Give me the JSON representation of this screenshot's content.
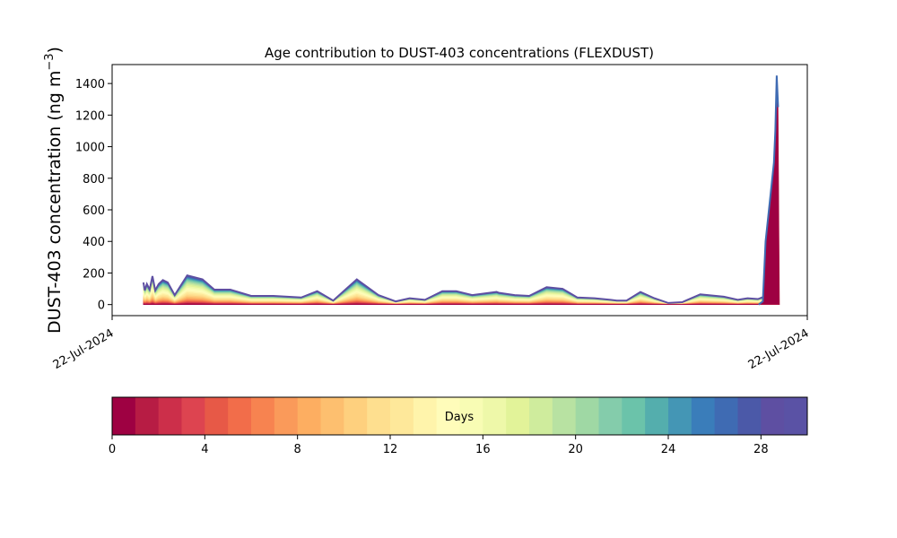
{
  "chart_data": {
    "type": "area",
    "title": "Age contribution to DUST-403 concentrations (FLEXDUST)",
    "ylabel_main": "DUST-403 concentration (ng m",
    "ylabel_exp": "−3",
    "ylabel_close": ")",
    "xlabel": "",
    "x_ticks": [
      "22-Jul-2024",
      "22-Jul-2024"
    ],
    "ylim": [
      -70,
      1520
    ],
    "y_ticks": [
      0,
      200,
      400,
      600,
      800,
      1000,
      1200,
      1400
    ],
    "grid": false,
    "x_fraction": [
      0.045,
      0.047,
      0.05,
      0.054,
      0.058,
      0.062,
      0.067,
      0.073,
      0.08,
      0.09,
      0.108,
      0.13,
      0.147,
      0.17,
      0.2,
      0.232,
      0.252,
      0.272,
      0.295,
      0.318,
      0.352,
      0.355,
      0.383,
      0.408,
      0.428,
      0.45,
      0.475,
      0.495,
      0.518,
      0.553,
      0.556,
      0.579,
      0.6,
      0.625,
      0.648,
      0.669,
      0.694,
      0.717,
      0.726,
      0.74,
      0.76,
      0.78,
      0.8,
      0.82,
      0.846,
      0.88,
      0.9,
      0.914,
      0.929,
      0.938
    ],
    "total_values": [
      140,
      90,
      130,
      95,
      180,
      90,
      130,
      155,
      140,
      60,
      185,
      160,
      95,
      95,
      55,
      55,
      50,
      45,
      85,
      25,
      160,
      150,
      60,
      20,
      40,
      30,
      85,
      85,
      60,
      80,
      75,
      60,
      55,
      110,
      100,
      45,
      40,
      30,
      25,
      25,
      80,
      40,
      10,
      15,
      65,
      50,
      30,
      40,
      35,
      50
    ],
    "spike": {
      "x_fraction": [
        0.93,
        0.936,
        0.94,
        0.952,
        0.954,
        0.956,
        0.958
      ],
      "values": [
        0,
        20,
        400,
        900,
        1100,
        1450,
        1250
      ],
      "base_fraction": 0.96
    },
    "colorbar": {
      "label": "Days",
      "range": [
        0,
        30
      ],
      "ticks": [
        0,
        4,
        8,
        12,
        16,
        20,
        24,
        28
      ],
      "colors": [
        "#9e0142",
        "#b71c44",
        "#cc2f4a",
        "#dd4450",
        "#e75947",
        "#f26d4a",
        "#f78350",
        "#fa9a5a",
        "#fdae61",
        "#fdbf6f",
        "#fed07e",
        "#fedf8f",
        "#fee89a",
        "#fff4ab",
        "#fffcba",
        "#f8fcb4",
        "#eef8a9",
        "#e2f399",
        "#cfec9d",
        "#b8e2a2",
        "#9fd8a4",
        "#84ccab",
        "#6bc3aa",
        "#54aead",
        "#4496b5",
        "#3a7dba",
        "#3f6bb3",
        "#4b59a8",
        "#5e4fa2",
        "#5a52a5"
      ]
    }
  }
}
